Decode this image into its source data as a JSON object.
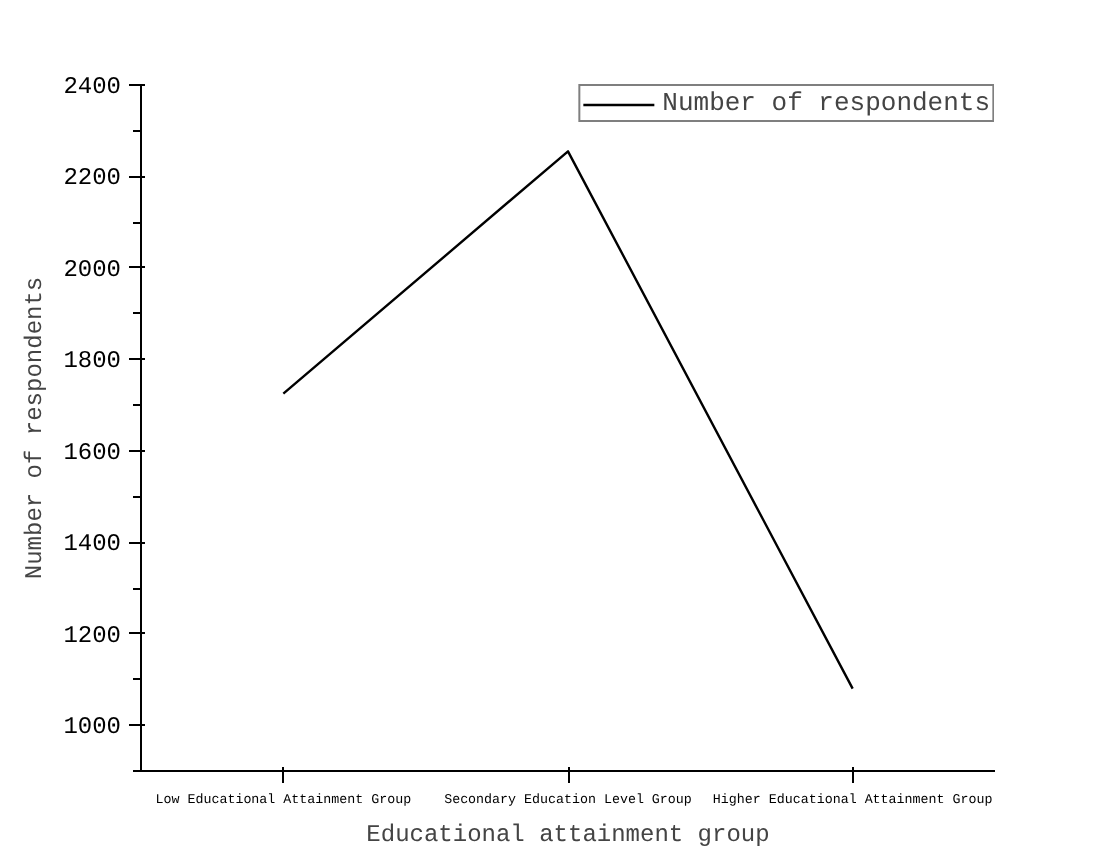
{
  "chart_data": {
    "type": "line",
    "xlabel": "Educational attainment group",
    "ylabel": "Number of respondents",
    "categories": [
      "Low Educational Attainment Group",
      "Secondary Education Level Group",
      "Higher Educational Attainment Group"
    ],
    "series": [
      {
        "name": "Number of respondents",
        "color": "#000000",
        "values": [
          1725,
          2255,
          1080
        ]
      }
    ],
    "ylim": [
      900,
      2400
    ],
    "yticks": [
      1000,
      1200,
      1400,
      1600,
      1800,
      2000,
      2200,
      2400
    ],
    "grid": false,
    "legend": "top right",
    "marker": "none",
    "line_style": "solid"
  }
}
